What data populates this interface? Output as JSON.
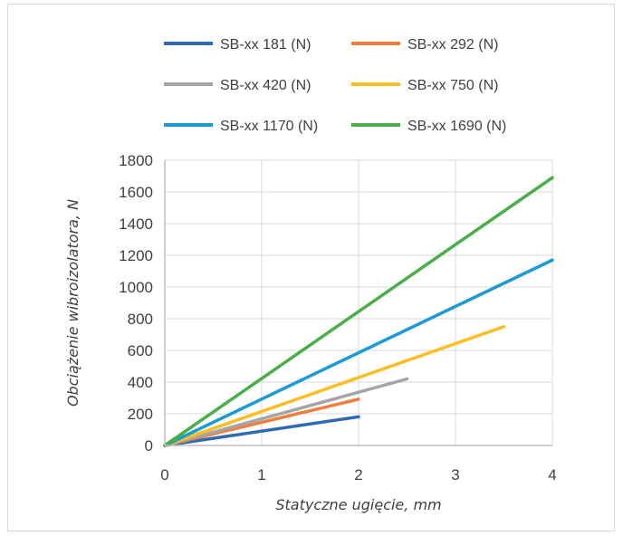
{
  "chart_data": {
    "type": "line",
    "xlabel": "Statyczne ugięcie, mm",
    "ylabel": "Obciążenie wibroizolatora, N",
    "xlim": [
      0,
      4
    ],
    "ylim": [
      0,
      1800
    ],
    "xticks": [
      0,
      1,
      2,
      3,
      4
    ],
    "yticks": [
      0,
      200,
      400,
      600,
      800,
      1000,
      1200,
      1400,
      1600,
      1800
    ],
    "grid": true,
    "legend_position": "top",
    "series": [
      {
        "name": "SB-xx 181 (N)",
        "color": "#2e6bb0",
        "x": [
          0,
          2
        ],
        "y": [
          0,
          181
        ]
      },
      {
        "name": "SB-xx 292 (N)",
        "color": "#ef7d3c",
        "x": [
          0,
          2
        ],
        "y": [
          0,
          292
        ]
      },
      {
        "name": "SB-xx 420 (N)",
        "color": "#a5a5a5",
        "x": [
          0,
          2.5
        ],
        "y": [
          0,
          420
        ]
      },
      {
        "name": "SB-xx 750 (N)",
        "color": "#fbbd24",
        "x": [
          0,
          3.5
        ],
        "y": [
          0,
          750
        ]
      },
      {
        "name": "SB-xx 1170 (N)",
        "color": "#1b9ad6",
        "x": [
          0,
          4
        ],
        "y": [
          0,
          1170
        ]
      },
      {
        "name": "SB-xx 1690 (N)",
        "color": "#4aae4a",
        "x": [
          0,
          4
        ],
        "y": [
          0,
          1690
        ]
      }
    ]
  }
}
